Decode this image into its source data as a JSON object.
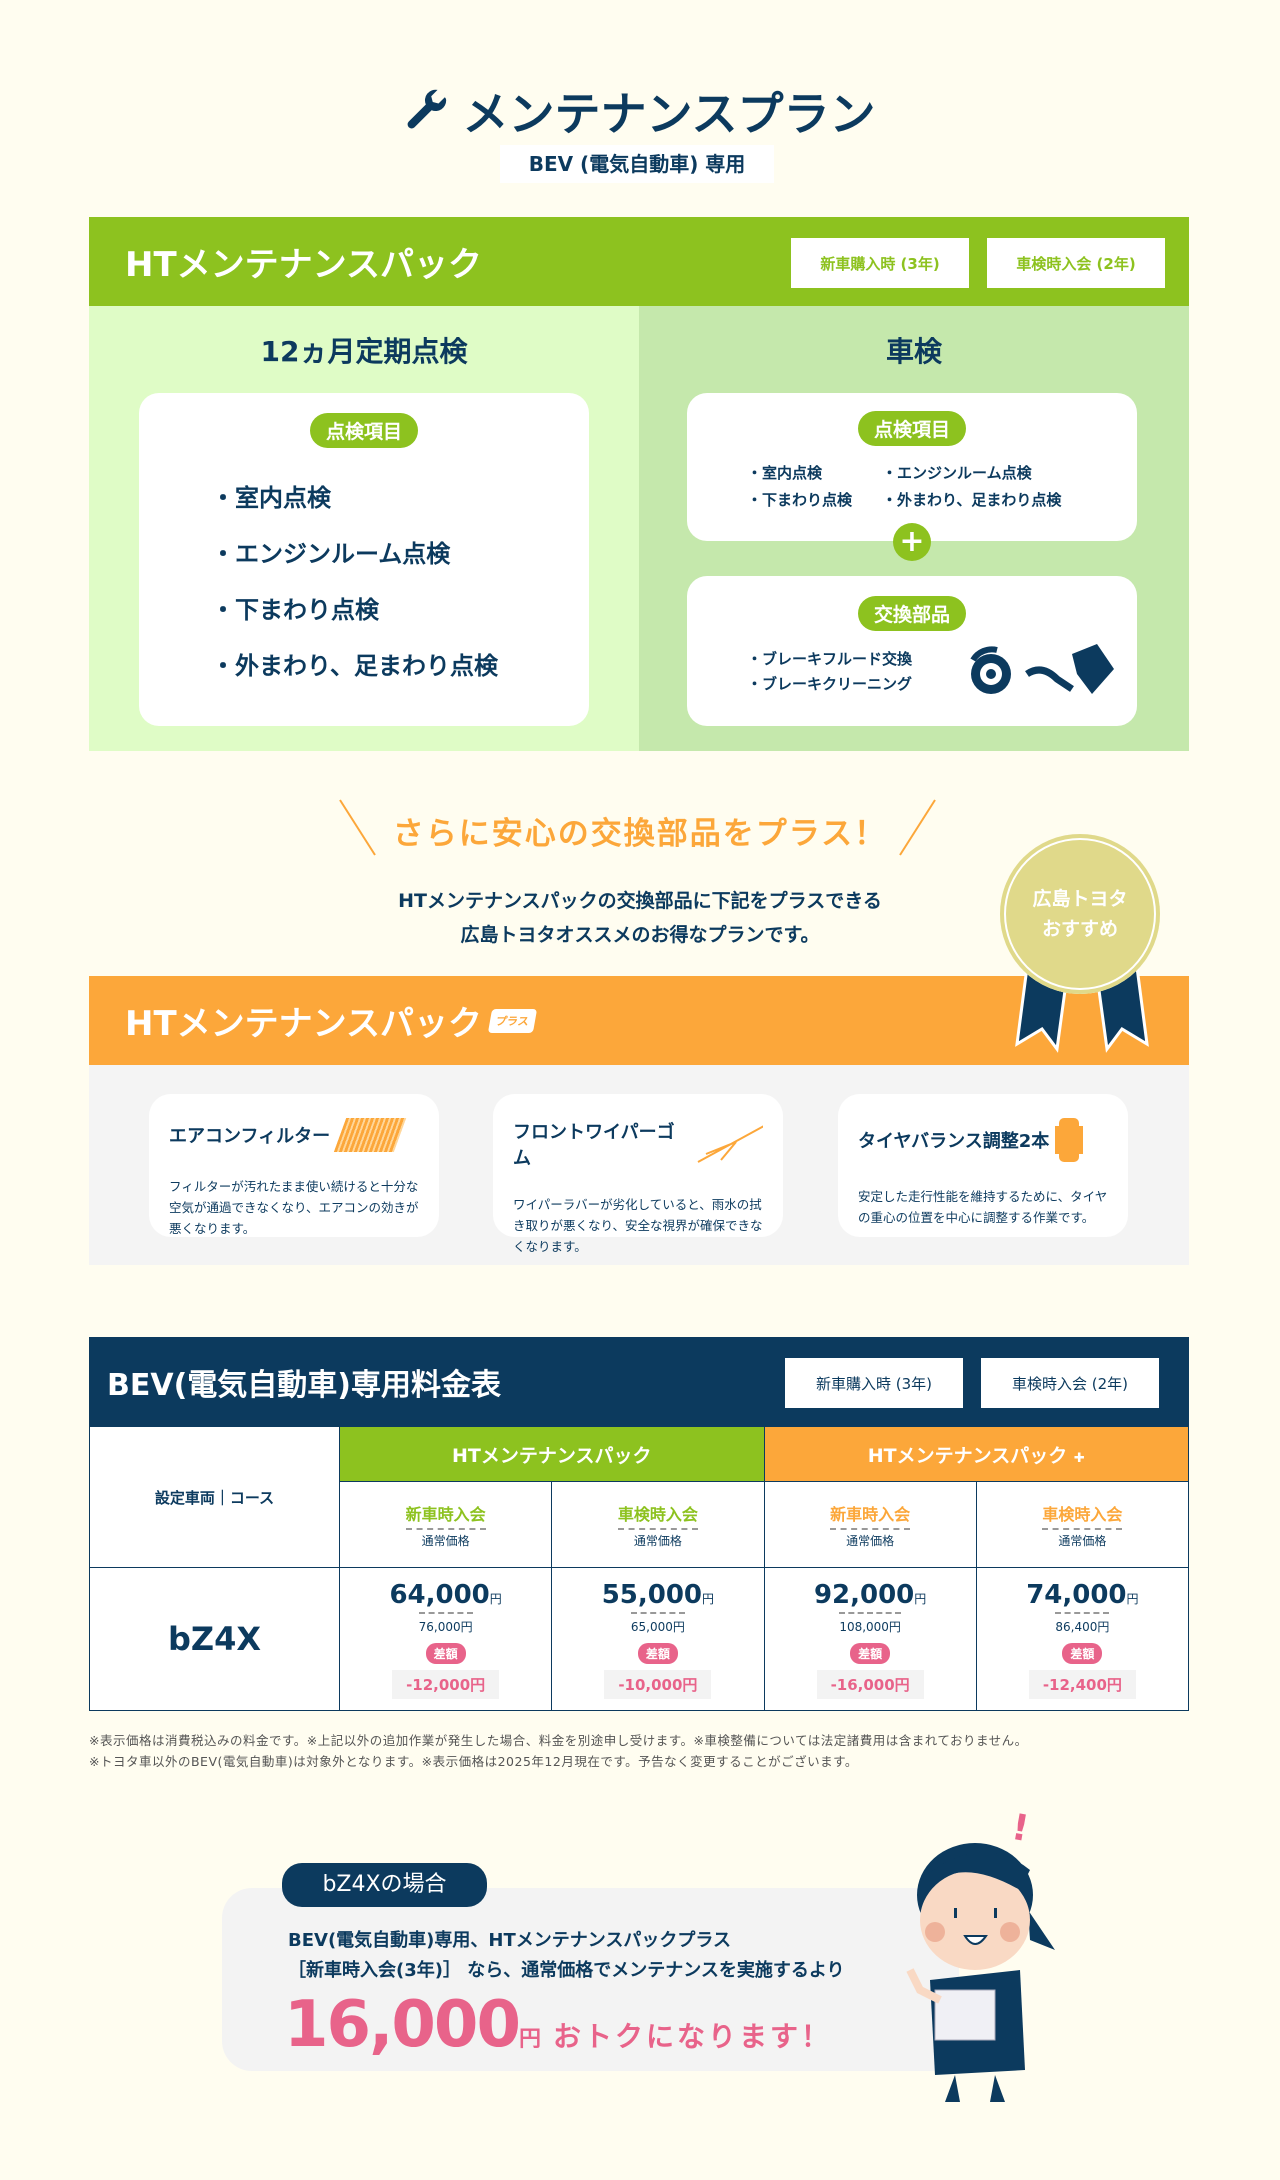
{
  "header": {
    "title": "メンテナンスプラン",
    "subtitle": "BEV (電気自動車) 専用",
    "icon": "wrench-icon"
  },
  "ht_pack": {
    "title": "HTメンテナンスパック",
    "buttons": [
      "新車購入時 (3年)",
      "車検時入会 (2年)"
    ],
    "periodic": {
      "title": "12ヵ月定期点検",
      "badge": "点検項目",
      "items": [
        "室内点検",
        "エンジンルーム点検",
        "下まわり点検",
        "外まわり、足まわり点検"
      ]
    },
    "shaken": {
      "title": "車検",
      "badge": "点検項目",
      "items": [
        "室内点検",
        "エンジンルーム点検",
        "下まわり点検",
        "外まわり、足まわり点検"
      ],
      "parts_badge": "交換部品",
      "parts": [
        "ブレーキフルード交換",
        "ブレーキクリーニング"
      ]
    }
  },
  "promo": {
    "headline": "さらに安心の交換部品をプラス！",
    "line1": "HTメンテナンスパックの交換部品に下記をプラスできる",
    "line2": "広島トヨタオススメのお得なプランです。",
    "badge_line1": "広島トヨタ",
    "badge_line2": "おすすめ"
  },
  "ht_plus": {
    "title": "HTメンテナンスパック",
    "plus_label": "プラス",
    "cards": [
      {
        "title": "エアコンフィルター",
        "desc": "フィルターが汚れたまま使い続けると十分な空気が通過できなくなり、エアコンの効きが悪くなります。",
        "icon": "air-filter-icon"
      },
      {
        "title": "フロントワイパーゴム",
        "desc": "ワイパーラバーが劣化していると、雨水の拭き取りが悪くなり、安全な視界が確保できなくなります。",
        "icon": "wiper-icon"
      },
      {
        "title": "タイヤバランス調整2本",
        "desc": "安定した走行性能を維持するために、タイヤの重心の位置を中心に調整する作業です。",
        "icon": "tire-icon"
      }
    ]
  },
  "price_table": {
    "title": "BEV(電気自動車)専用料金表",
    "buttons": [
      "新車購入時 (3年)",
      "車検時入会 (2年)"
    ],
    "row_header": "設定車両｜コース",
    "groups": [
      "HTメンテナンスパック",
      "HTメンテナンスパック"
    ],
    "columns": [
      {
        "label": "新車時入会",
        "sub": "通常価格"
      },
      {
        "label": "車検時入会",
        "sub": "通常価格"
      },
      {
        "label": "新車時入会",
        "sub": "通常価格"
      },
      {
        "label": "車検時入会",
        "sub": "通常価格"
      }
    ],
    "yen": "円",
    "diff_label": "差額",
    "rows": [
      {
        "vehicle": "bZ4X",
        "cells": [
          {
            "price": "64,000",
            "regular": "76,000円",
            "diff": "-12,000円"
          },
          {
            "price": "55,000",
            "regular": "65,000円",
            "diff": "-10,000円"
          },
          {
            "price": "92,000",
            "regular": "108,000円",
            "diff": "-16,000円"
          },
          {
            "price": "74,000",
            "regular": "86,400円",
            "diff": "-12,400円"
          }
        ]
      }
    ],
    "notes": [
      "※表示価格は消費税込みの料金です。※上記以外の追加作業が発生した場合、料金を別途申し受けます。※車検整備については法定諸費用は含まれておりません。",
      "※トヨタ車以外のBEV(電気自動車)は対象外となります。※表示価格は2025年12月現在です。予告なく変更することがございます。"
    ]
  },
  "example": {
    "tag": "bZ4Xの場合",
    "line1": "BEV(電気自動車)専用、HTメンテナンスパックプラス",
    "line2": "［新車時入会(3年)］ なら、通常価格でメンテナンスを実施するより",
    "amount": "16,000",
    "yen": "円",
    "suffix": "おトクになります！",
    "exclaim": "!"
  },
  "colors": {
    "navy": "#0c3a5e",
    "green": "#8dc21f",
    "orange": "#fca73a",
    "pink": "#e8638a",
    "bg": "#fffdf0"
  }
}
